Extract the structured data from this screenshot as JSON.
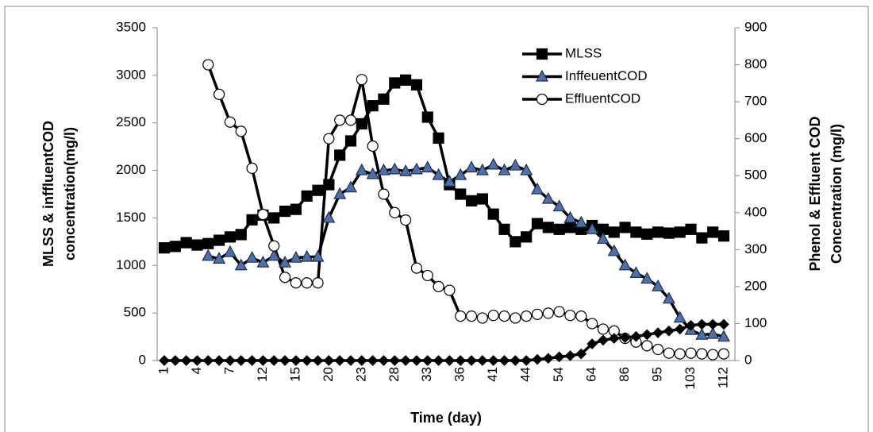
{
  "chart_data": {
    "type": "line",
    "x_label": "Time (day)",
    "y_label_lines": [
      "MLSS & inffluentCOD",
      "concentration(mg/l)"
    ],
    "y2_label_lines": [
      "Phenol & Effluent COD",
      "Concentration (mg/l)"
    ],
    "categories": [
      "1",
      null,
      null,
      "4",
      null,
      null,
      "7",
      null,
      null,
      "12",
      null,
      null,
      "15",
      null,
      null,
      "20",
      null,
      null,
      "23",
      null,
      null,
      "28",
      null,
      null,
      "33",
      null,
      null,
      "36",
      null,
      null,
      "41",
      null,
      null,
      "44",
      null,
      null,
      "54",
      null,
      null,
      "64",
      null,
      null,
      "86",
      null,
      null,
      "95",
      null,
      null,
      "103",
      null,
      null,
      "112"
    ],
    "ylim": [
      0,
      3500
    ],
    "yticks": [
      0,
      500,
      1000,
      1500,
      2000,
      2500,
      3000,
      3500
    ],
    "y2lim": [
      0,
      900
    ],
    "y2ticks": [
      0,
      100,
      200,
      300,
      400,
      500,
      600,
      700,
      800,
      900
    ],
    "legend": "upper right",
    "series": [
      {
        "name": "MLSS",
        "color": "#000000",
        "marker": "square",
        "marker_color": "#000000",
        "values": [
          1185,
          1200,
          1240,
          1215,
          1230,
          1265,
          1300,
          1325,
          1480,
          1530,
          1500,
          1570,
          1590,
          1730,
          1790,
          1850,
          2160,
          2310,
          2490,
          2680,
          2750,
          2920,
          2950,
          2900,
          2560,
          2340,
          1850,
          1750,
          1680,
          1700,
          1540,
          1380,
          1250,
          1300,
          1440,
          1400,
          1380,
          1400,
          1380,
          1420,
          1380,
          1350,
          1400,
          1350,
          1330,
          1350,
          1340,
          1350,
          1380,
          1290,
          1350,
          1310
        ]
      },
      {
        "name": "InffeuentCOD",
        "color": "#000000",
        "marker": "triangle",
        "marker_color": "#4f6fa8",
        "values": [
          null,
          null,
          null,
          null,
          1100,
          1070,
          1140,
          1000,
          1080,
          1030,
          1100,
          1030,
          1080,
          1090,
          1090,
          1500,
          1750,
          1820,
          2000,
          1960,
          2000,
          2010,
          1990,
          2010,
          2030,
          1950,
          1880,
          1950,
          2030,
          2000,
          2060,
          2000,
          2050,
          2000,
          1800,
          1700,
          1620,
          1500,
          1450,
          1380,
          1280,
          1150,
          1000,
          920,
          860,
          780,
          650,
          450,
          320,
          270,
          280,
          250
        ]
      },
      {
        "name": "EffluentCOD",
        "color": "#000000",
        "marker": "circle",
        "marker_color": "#ffffff",
        "axis": "y2",
        "values": [
          null,
          null,
          null,
          null,
          800,
          720,
          645,
          620,
          520,
          395,
          310,
          225,
          210,
          210,
          210,
          600,
          650,
          650,
          760,
          580,
          450,
          400,
          380,
          250,
          230,
          200,
          190,
          120,
          120,
          115,
          122,
          120,
          115,
          120,
          125,
          128,
          132,
          122,
          120,
          100,
          85,
          80,
          60,
          50,
          40,
          30,
          20,
          18,
          20,
          18,
          16,
          18
        ]
      },
      {
        "color": "#000000",
        "marker": "diamond",
        "marker_color": "#000000",
        "axis": "y2",
        "values": [
          0,
          0,
          0,
          0,
          0,
          0,
          0,
          0,
          0,
          0,
          0,
          0,
          0,
          0,
          0,
          0,
          0,
          0,
          0,
          0,
          0,
          0,
          0,
          0,
          0,
          0,
          0,
          0,
          0,
          0,
          0,
          0,
          0,
          0,
          3,
          6,
          10,
          13,
          18,
          45,
          55,
          60,
          62,
          65,
          70,
          75,
          80,
          85,
          95,
          98,
          98,
          98
        ]
      }
    ]
  }
}
